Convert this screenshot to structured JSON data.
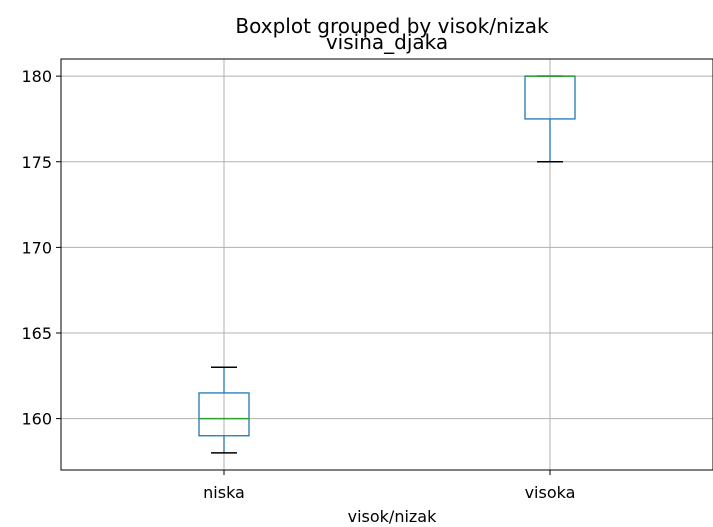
{
  "chart_data": {
    "type": "box",
    "title": "Boxplot grouped by visok/nizak",
    "subtitle": "visina_djaka",
    "xlabel": "visok/nizak",
    "ylabel": "",
    "categories": [
      "niska",
      "visoka"
    ],
    "ylim": [
      157,
      181
    ],
    "yticks": [
      160,
      165,
      170,
      175,
      180
    ],
    "grid": true,
    "boxes": [
      {
        "category": "niska",
        "whisker_low": 158,
        "q1": 159,
        "median": 160,
        "q3": 161.5,
        "whisker_high": 163
      },
      {
        "category": "visoka",
        "whisker_low": 175,
        "q1": 177.5,
        "median": 180,
        "q3": 180,
        "whisker_high": 180
      }
    ],
    "colors": {
      "box": "#1f77b4",
      "median": "#2ca02c",
      "whisker": "#1f77b4",
      "cap": "#000000",
      "grid": "#b0b0b0",
      "frame": "#000000"
    }
  }
}
